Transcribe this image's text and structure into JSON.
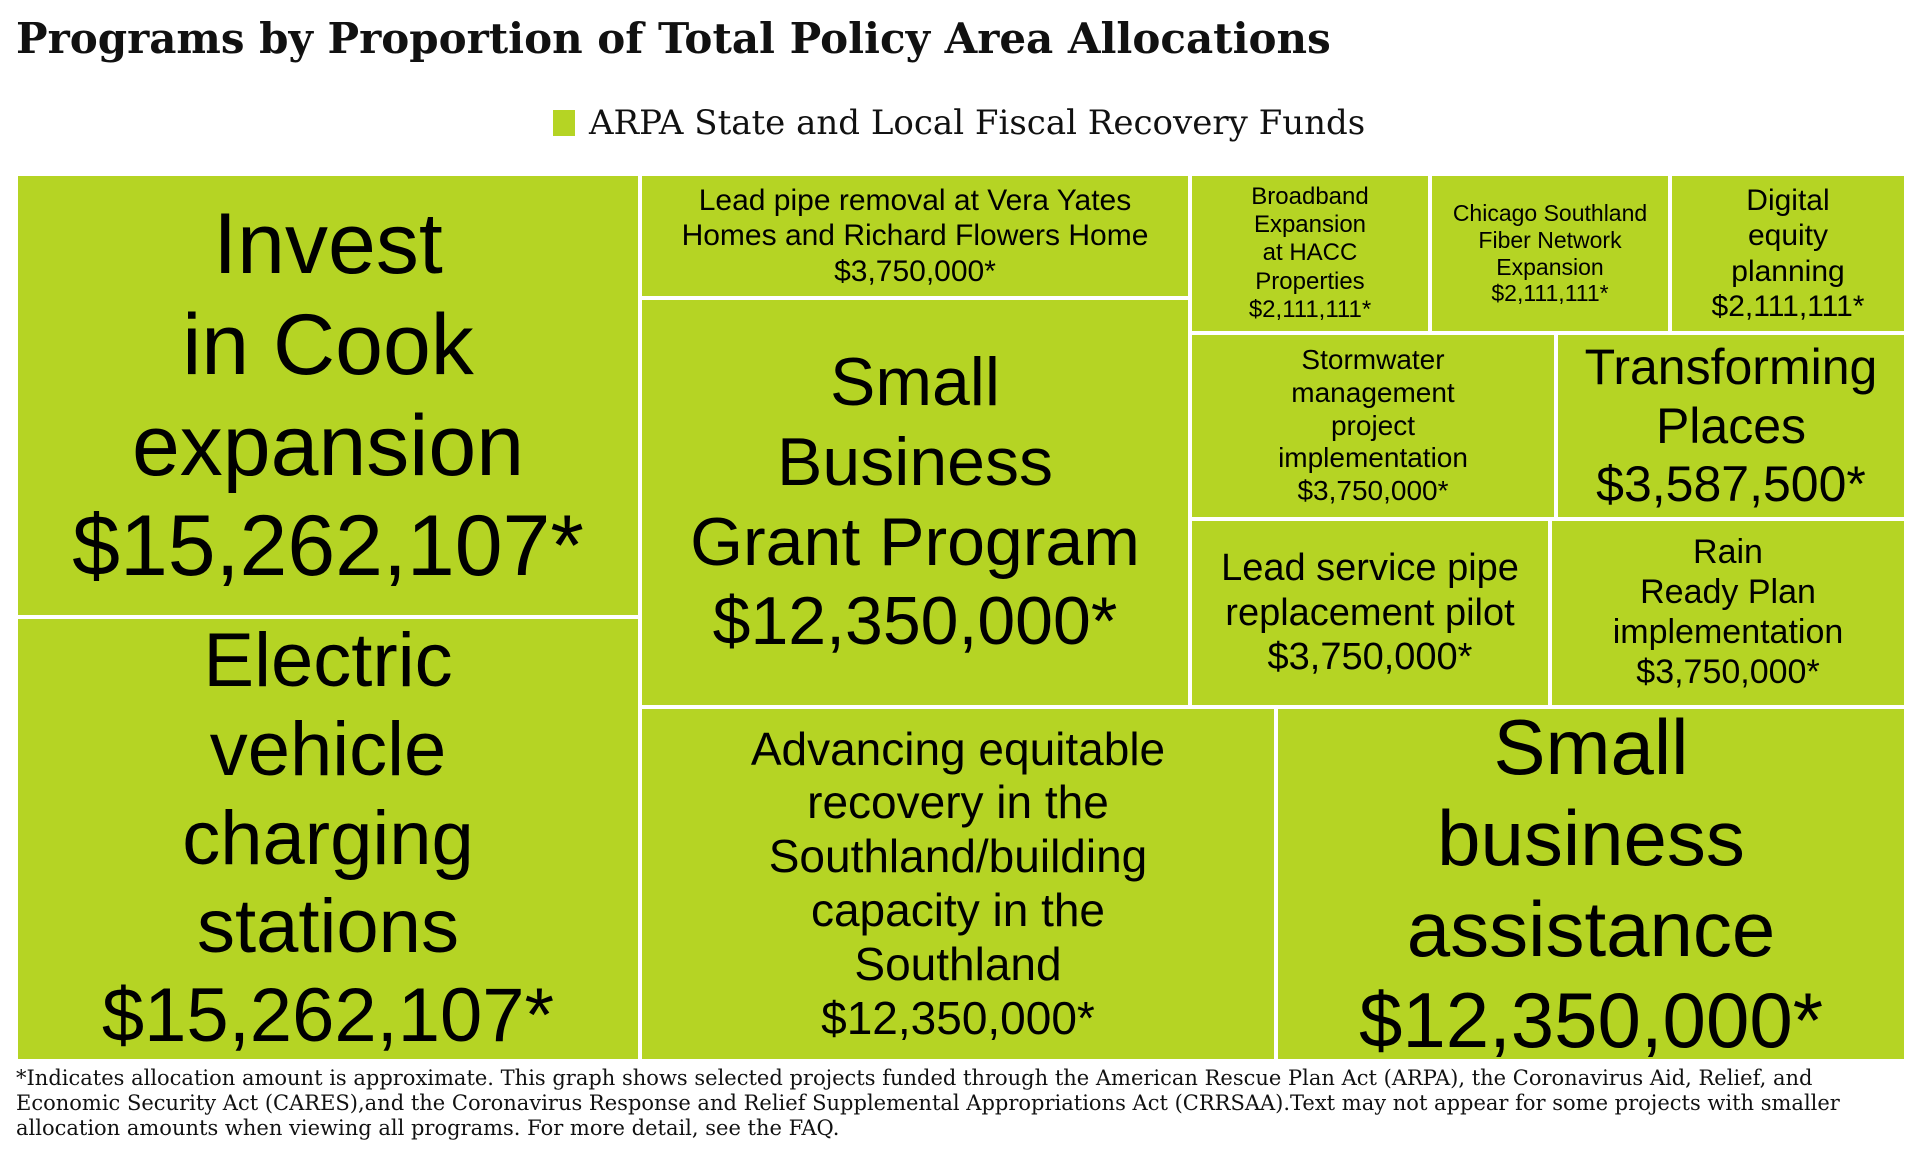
{
  "title": "Programs by Proportion of Total Policy Area Allocations",
  "legend": {
    "label": "ARPA State and Local Fiscal Recovery Funds",
    "color": "#b5d424"
  },
  "footnote": "*Indicates allocation amount is approximate. This graph shows selected projects funded through the American Rescue Plan Act (ARPA), the Coronavirus Aid, Relief, and Economic Security Act (CARES),and the Coronavirus Response and Relief Supplemental Appropriations Act (CRRSAA).Text may not appear for some projects with smaller allocation amounts when viewing all programs. For more detail, see the FAQ.",
  "chart_data": {
    "type": "treemap",
    "series_name": "ARPA State and Local Fiscal Recovery Funds",
    "color": "#b5d424",
    "items": [
      {
        "name": "Invest in Cook expansion",
        "label": "$15,262,107*",
        "value": 15262107
      },
      {
        "name": "Electric vehicle charging stations",
        "label": "$15,262,107*",
        "value": 15262107
      },
      {
        "name": "Lead pipe removal at Vera Yates Homes and Richard Flowers Home",
        "label": "$3,750,000*",
        "value": 3750000
      },
      {
        "name": "Small Business Grant Program",
        "label": "$12,350,000*",
        "value": 12350000
      },
      {
        "name": "Advancing equitable recovery in the Southland/building capacity in the Southland",
        "label": "$12,350,000*",
        "value": 12350000
      },
      {
        "name": "Small business assistance",
        "label": "$12,350,000*",
        "value": 12350000
      },
      {
        "name": "Broadband Expansion at HACC Properties",
        "label": "$2,111,111*",
        "value": 2111111
      },
      {
        "name": "Chicago Southland Fiber Network Expansion",
        "label": "$2,111,111*",
        "value": 2111111
      },
      {
        "name": "Digital equity planning",
        "label": "$2,111,111*",
        "value": 2111111
      },
      {
        "name": "Stormwater management project implementation",
        "label": "$3,750,000*",
        "value": 3750000
      },
      {
        "name": "Transforming Places",
        "label": "$3,587,500*",
        "value": 3587500
      },
      {
        "name": "Lead service pipe replacement pilot",
        "label": "$3,750,000*",
        "value": 3750000
      },
      {
        "name": "Rain Ready Plan implementation",
        "label": "$3,750,000*",
        "value": 3750000
      }
    ]
  }
}
